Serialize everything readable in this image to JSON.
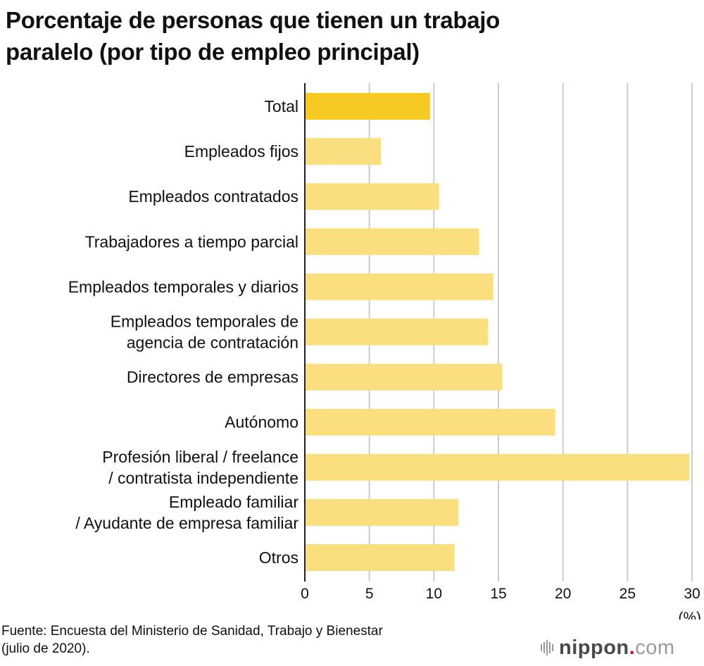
{
  "chart_data": {
    "type": "bar",
    "orientation": "horizontal",
    "title": "Porcentaje de personas que tienen un trabajo paralelo (por tipo de empleo principal)",
    "xlabel": "(%)",
    "ylabel": "",
    "xlim": [
      0,
      30
    ],
    "xticks": [
      0,
      5,
      10,
      15,
      20,
      25,
      30
    ],
    "grid": true,
    "categories": [
      [
        "Total"
      ],
      [
        "Empleados fijos"
      ],
      [
        "Empleados contratados"
      ],
      [
        "Trabajadores a tiempo parcial"
      ],
      [
        "Empleados temporales y diarios"
      ],
      [
        "Empleados temporales de",
        "agencia de contratación"
      ],
      [
        "Directores de empresas"
      ],
      [
        "Autónomo"
      ],
      [
        "Profesión liberal / freelance",
        "/ contratista independiente"
      ],
      [
        "Empleado familiar",
        "/ Ayudante de empresa familiar"
      ],
      [
        "Otros"
      ]
    ],
    "values": [
      9.7,
      5.9,
      10.4,
      13.5,
      14.6,
      14.2,
      15.3,
      19.4,
      29.8,
      11.9,
      11.6
    ],
    "highlight_index": 0,
    "colors": {
      "highlight": "#f7c923",
      "default": "#fbdf7f",
      "grid": "#cccccc",
      "axis": "#222222"
    }
  },
  "title_line1": "Porcentaje de personas que tienen un trabajo",
  "title_line2": "paralelo (por tipo de empleo principal)",
  "source_line1": "Fuente: Encuesta del Ministerio de Sanidad, Trabajo y Bienestar",
  "source_line2": "(julio de 2020).",
  "logo": {
    "name": "nippon",
    "dot": ".",
    "tld": "com",
    "icon": "sound-wave-icon"
  }
}
